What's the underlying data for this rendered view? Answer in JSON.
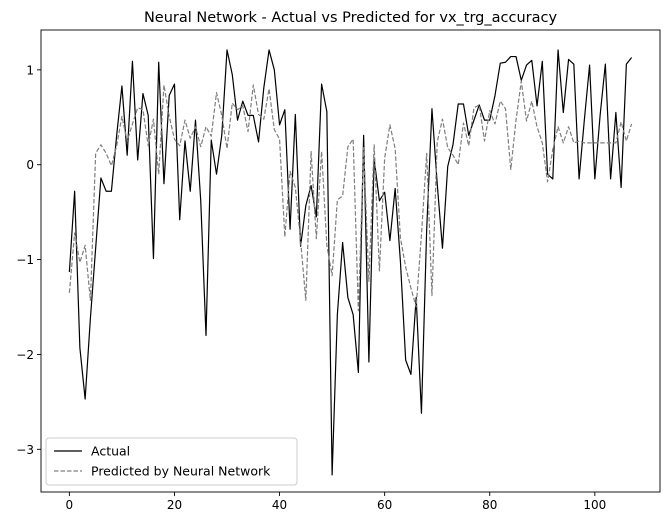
{
  "chart_data": {
    "type": "line",
    "title": "Neural Network - Actual vs Predicted for vx_trg_accuracy",
    "xlabel": "",
    "ylabel": "",
    "xlim": [
      -5.4,
      112.4
    ],
    "ylim": [
      -3.45,
      1.42
    ],
    "x_ticks": [
      0,
      20,
      40,
      60,
      80,
      100
    ],
    "y_ticks": [
      -3,
      -2,
      -1,
      0,
      1
    ],
    "y_tick_labels": [
      "−3",
      "−2",
      "−1",
      "0",
      "1"
    ],
    "grid": false,
    "legend_position": "lower-left",
    "series": [
      {
        "name": "Actual",
        "color": "#000000",
        "dash": "solid",
        "values": [
          -1.13,
          -0.28,
          -1.93,
          -2.47,
          -1.62,
          -0.88,
          -0.14,
          -0.28,
          -0.28,
          0.31,
          0.83,
          0.1,
          1.09,
          0.05,
          0.75,
          0.52,
          -0.99,
          1.08,
          -0.2,
          0.73,
          0.85,
          -0.58,
          0.25,
          -0.28,
          0.47,
          -0.38,
          -1.8,
          0.26,
          -0.1,
          0.31,
          1.21,
          0.95,
          0.47,
          0.67,
          0.52,
          0.52,
          0.24,
          0.81,
          1.21,
          1.0,
          0.42,
          0.58,
          -0.68,
          0.53,
          -0.86,
          -0.43,
          -0.22,
          -0.55,
          0.85,
          0.56,
          -3.27,
          -1.58,
          -0.82,
          -1.4,
          -1.58,
          -2.19,
          0.31,
          -2.08,
          0.06,
          -0.38,
          -0.29,
          -0.8,
          -0.25,
          -1.02,
          -2.06,
          -2.21,
          -1.4,
          -2.62,
          -0.68,
          0.59,
          -0.2,
          -0.88,
          -0.02,
          0.21,
          0.64,
          0.64,
          0.31,
          0.47,
          0.63,
          0.47,
          0.47,
          0.73,
          1.07,
          1.08,
          1.14,
          1.14,
          0.89,
          1.05,
          1.1,
          0.62,
          1.09,
          -0.1,
          -0.15,
          1.21,
          0.55,
          1.11,
          1.06,
          -0.15,
          0.47,
          1.05,
          -0.15,
          0.52,
          1.06,
          -0.15,
          0.55,
          -0.24,
          1.06,
          1.13
        ]
      },
      {
        "name": "Predicted by Neural Network",
        "color": "#7f7f7f",
        "dash": "dashed",
        "values": [
          -1.35,
          -0.72,
          -1.03,
          -0.85,
          -1.43,
          0.12,
          0.21,
          0.12,
          -0.01,
          0.2,
          0.51,
          0.25,
          0.43,
          0.6,
          0.58,
          0.2,
          0.48,
          -0.1,
          0.84,
          0.51,
          0.27,
          0.2,
          0.47,
          0.28,
          0.4,
          0.19,
          0.4,
          0.3,
          0.76,
          0.52,
          0.17,
          0.65,
          0.58,
          0.62,
          0.35,
          0.84,
          0.53,
          0.48,
          0.8,
          0.37,
          0.27,
          -0.76,
          -0.07,
          -0.24,
          -0.8,
          -1.43,
          0.14,
          -0.78,
          0.14,
          -0.85,
          -1.17,
          -0.37,
          -0.33,
          0.19,
          0.27,
          -1.54,
          0.18,
          -1.23,
          0.21,
          -1.12,
          0.07,
          0.42,
          0.17,
          -0.77,
          -1.08,
          -1.3,
          -1.5,
          -0.74,
          0.12,
          -1.38,
          0.24,
          0.48,
          0.18,
          0.1,
          0.0,
          0.44,
          0.2,
          0.6,
          0.63,
          0.25,
          0.57,
          0.43,
          0.67,
          0.59,
          -0.05,
          0.47,
          0.88,
          0.46,
          0.67,
          0.4,
          0.23,
          -0.18,
          0.16,
          0.4,
          0.23,
          0.4,
          0.23,
          0.25,
          0.23,
          0.23,
          0.23,
          0.23,
          0.23,
          0.23,
          0.23,
          0.45,
          0.25,
          0.43
        ]
      }
    ]
  }
}
